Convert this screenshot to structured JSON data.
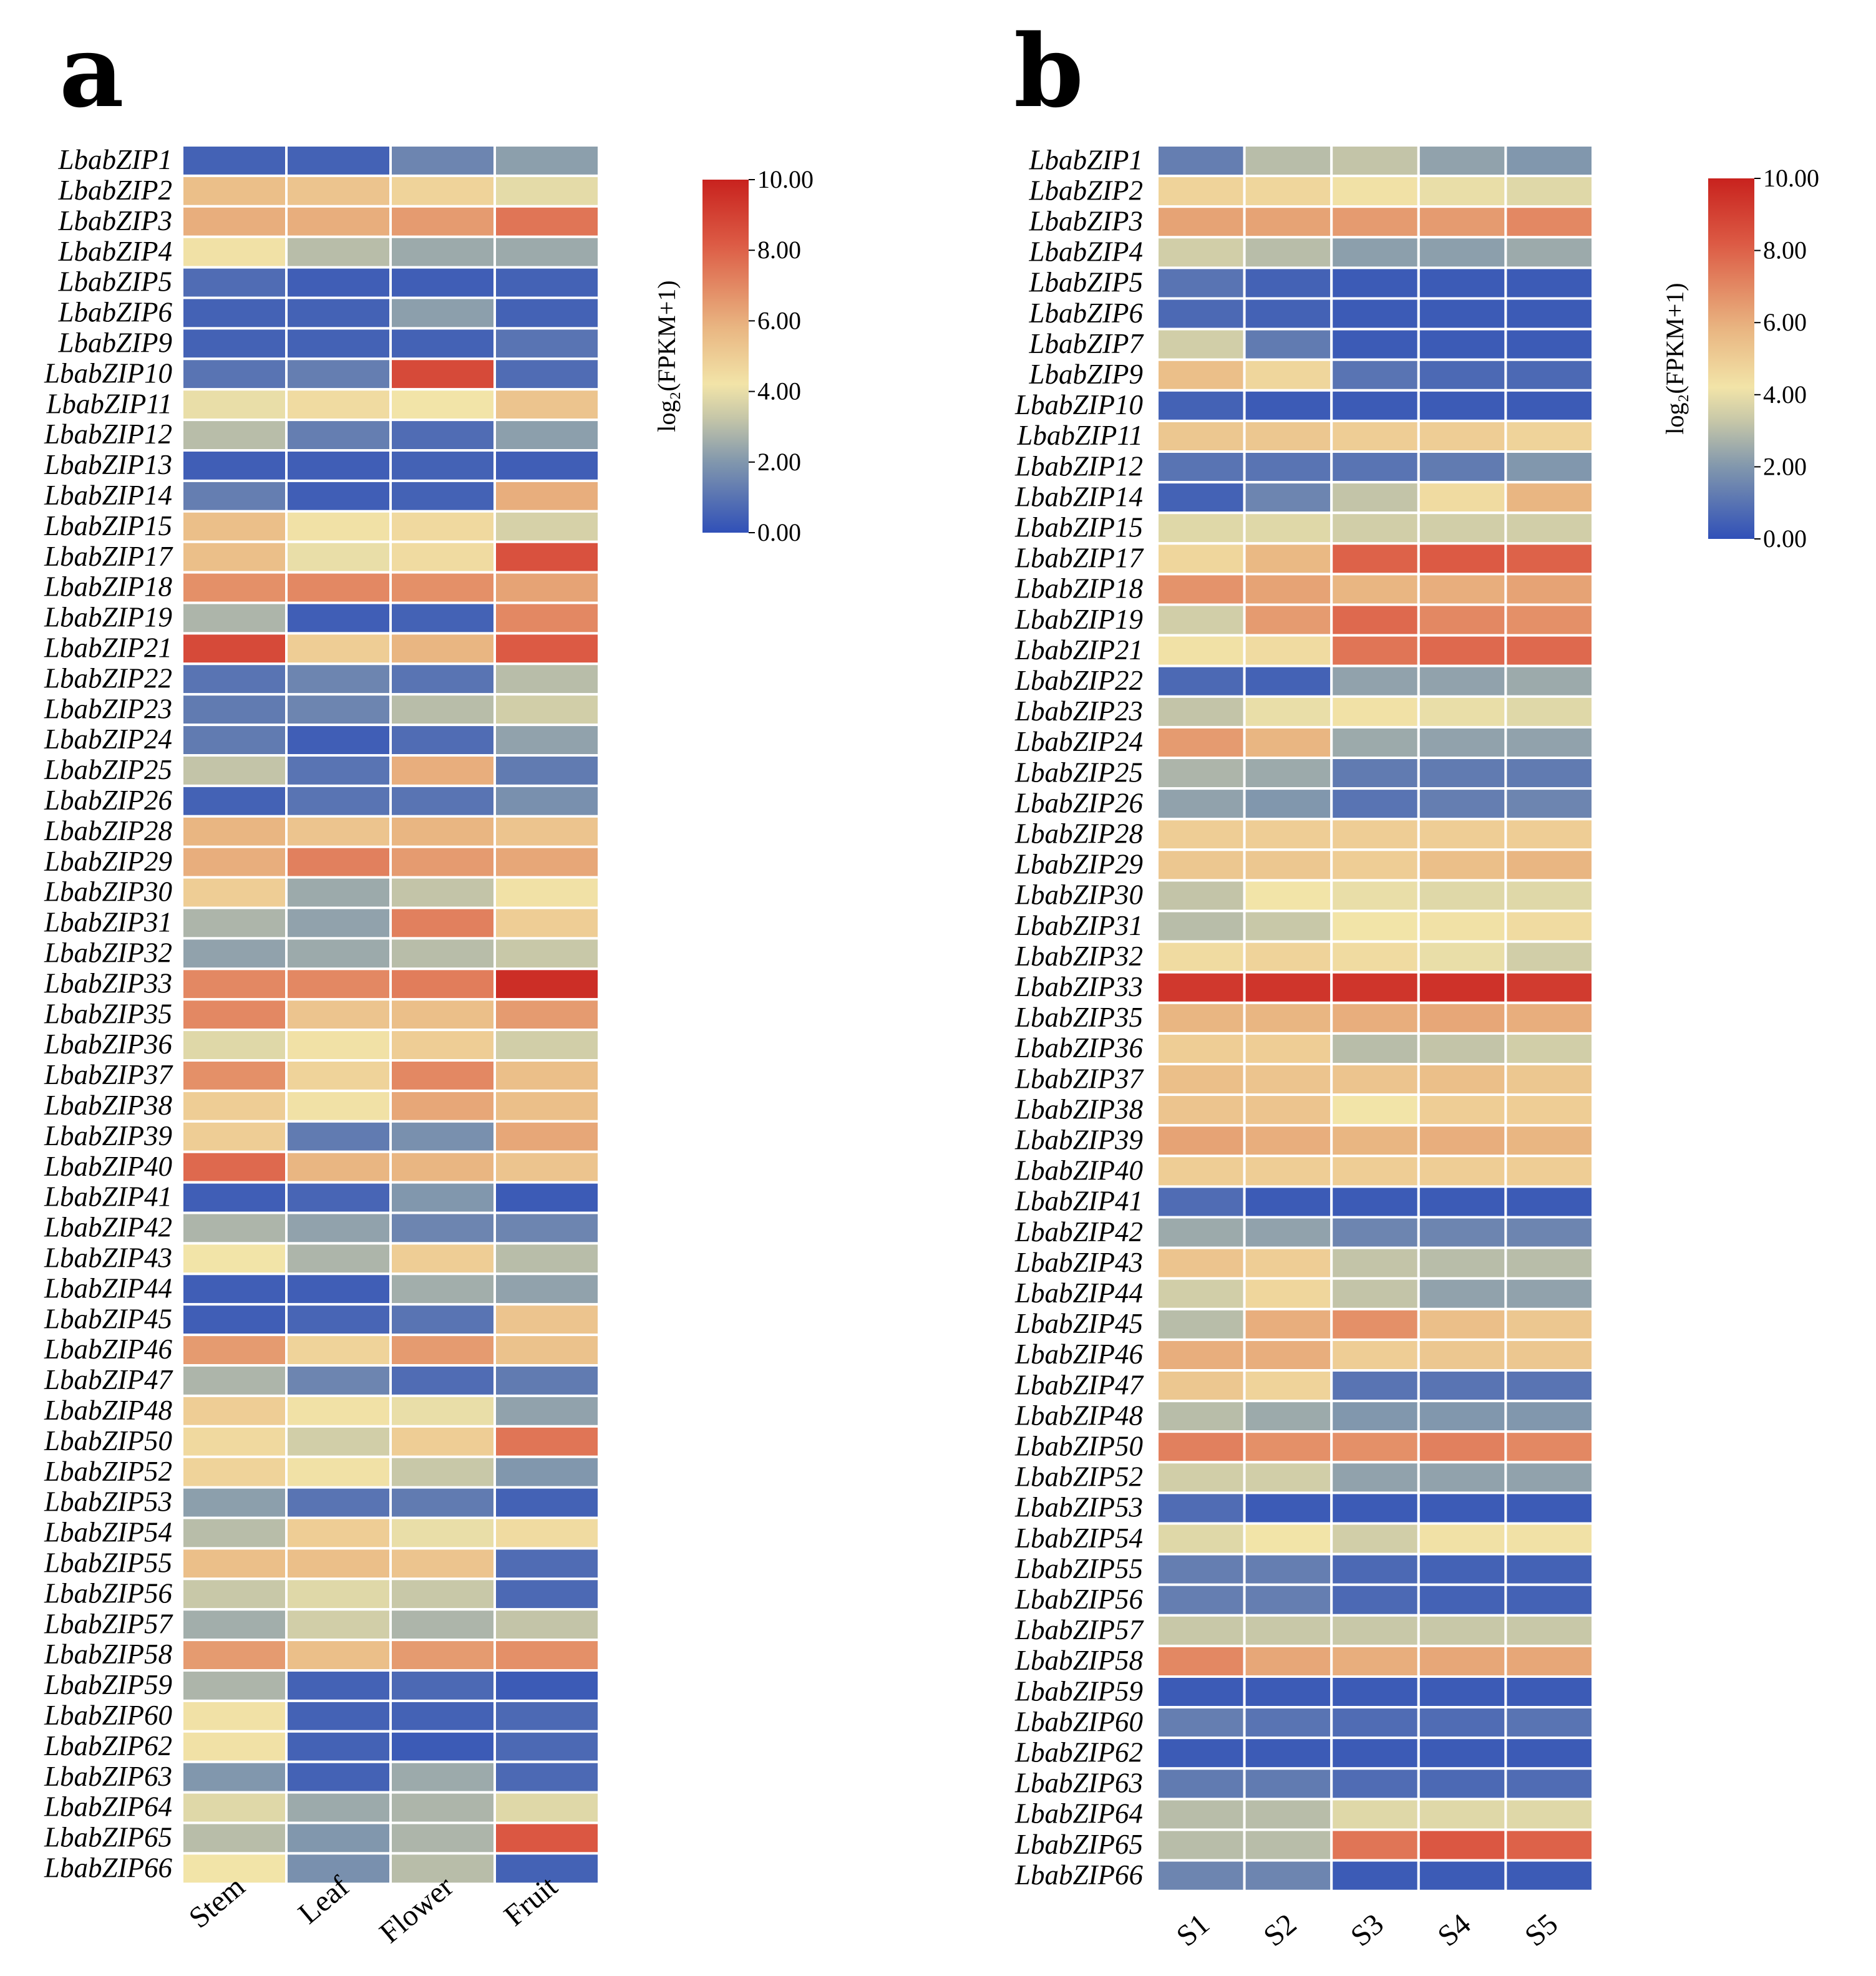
{
  "colors": {
    "stops": [
      "#3050b8",
      "#8197ad",
      "#c8c8a8",
      "#f2e4a8",
      "#e9b682",
      "#dc5a44",
      "#c8221e"
    ],
    "stop_values": [
      0,
      2,
      3.3,
      4.2,
      5.8,
      8.2,
      10
    ],
    "grid_line": "#ffffff"
  },
  "chart_data": [
    {
      "type": "heatmap",
      "panel_label": "a",
      "title": "",
      "columns": [
        "Stem",
        "Leaf",
        "Flower",
        "Fruit"
      ],
      "rows": [
        "LbabZIP1",
        "LbabZIP2",
        "LbabZIP3",
        "LbabZIP4",
        "LbabZIP5",
        "LbabZIP6",
        "LbabZIP9",
        "LbabZIP10",
        "LbabZIP11",
        "LbabZIP12",
        "LbabZIP13",
        "LbabZIP14",
        "LbabZIP15",
        "LbabZIP17",
        "LbabZIP18",
        "LbabZIP19",
        "LbabZIP21",
        "LbabZIP22",
        "LbabZIP23",
        "LbabZIP24",
        "LbabZIP25",
        "LbabZIP26",
        "LbabZIP28",
        "LbabZIP29",
        "LbabZIP30",
        "LbabZIP31",
        "LbabZIP32",
        "LbabZIP33",
        "LbabZIP35",
        "LbabZIP36",
        "LbabZIP37",
        "LbabZIP38",
        "LbabZIP39",
        "LbabZIP40",
        "LbabZIP41",
        "LbabZIP42",
        "LbabZIP43",
        "LbabZIP44",
        "LbabZIP45",
        "LbabZIP46",
        "LbabZIP47",
        "LbabZIP48",
        "LbabZIP50",
        "LbabZIP52",
        "LbabZIP53",
        "LbabZIP54",
        "LbabZIP55",
        "LbabZIP56",
        "LbabZIP57",
        "LbabZIP58",
        "LbabZIP59",
        "LbabZIP60",
        "LbabZIP62",
        "LbabZIP63",
        "LbabZIP64",
        "LbabZIP65",
        "LbabZIP66"
      ],
      "values": [
        [
          0.5,
          0.5,
          1.5,
          2.2
        ],
        [
          5.5,
          5.3,
          4.8,
          3.9
        ],
        [
          6.0,
          6.0,
          6.5,
          7.5
        ],
        [
          4.3,
          3.0,
          2.5,
          2.5
        ],
        [
          0.8,
          0.4,
          0.4,
          0.5
        ],
        [
          0.5,
          0.5,
          2.2,
          0.5
        ],
        [
          0.5,
          0.5,
          0.5,
          1.0
        ],
        [
          1.0,
          1.3,
          8.7,
          0.8
        ],
        [
          4.0,
          4.5,
          4.2,
          5.3
        ],
        [
          3.0,
          1.3,
          0.8,
          2.2
        ],
        [
          0.4,
          0.4,
          0.5,
          0.4
        ],
        [
          1.3,
          0.4,
          0.5,
          6.0
        ],
        [
          5.5,
          4.3,
          4.6,
          3.6
        ],
        [
          5.5,
          4.0,
          4.5,
          8.5
        ],
        [
          6.8,
          7.0,
          6.8,
          6.3
        ],
        [
          2.8,
          0.4,
          0.5,
          7.0
        ],
        [
          8.7,
          5.0,
          5.8,
          8.2
        ],
        [
          1.0,
          1.5,
          1.0,
          3.0
        ],
        [
          1.2,
          1.5,
          3.0,
          3.5
        ],
        [
          1.2,
          0.4,
          0.8,
          2.3
        ],
        [
          3.2,
          1.0,
          6.0,
          1.2
        ],
        [
          0.5,
          1.0,
          1.0,
          1.8
        ],
        [
          5.8,
          5.3,
          5.8,
          5.3
        ],
        [
          6.0,
          7.2,
          6.5,
          6.2
        ],
        [
          5.0,
          2.5,
          3.2,
          4.3
        ],
        [
          2.8,
          2.3,
          7.2,
          5.0
        ],
        [
          2.3,
          2.5,
          3.0,
          3.3
        ],
        [
          7.0,
          7.0,
          7.3,
          9.6
        ],
        [
          7.0,
          5.3,
          5.5,
          6.5
        ],
        [
          3.8,
          4.3,
          5.0,
          3.5
        ],
        [
          6.8,
          4.8,
          7.0,
          5.5
        ],
        [
          5.0,
          4.3,
          6.2,
          5.5
        ],
        [
          5.0,
          1.2,
          1.8,
          6.2
        ],
        [
          7.8,
          5.8,
          5.8,
          5.3
        ],
        [
          0.4,
          0.6,
          2.0,
          0.3
        ],
        [
          2.8,
          2.3,
          1.5,
          1.5
        ],
        [
          4.2,
          2.8,
          5.0,
          3.0
        ],
        [
          0.4,
          0.4,
          2.6,
          2.3
        ],
        [
          0.4,
          0.6,
          1.0,
          5.3
        ],
        [
          6.5,
          4.8,
          6.5,
          5.4
        ],
        [
          2.8,
          1.5,
          0.8,
          1.2
        ],
        [
          5.0,
          4.3,
          4.0,
          2.3
        ],
        [
          4.6,
          3.5,
          5.0,
          7.5
        ],
        [
          4.8,
          4.3,
          3.3,
          2.0
        ],
        [
          2.2,
          1.0,
          1.2,
          0.5
        ],
        [
          3.0,
          5.0,
          4.0,
          4.5
        ],
        [
          5.5,
          5.5,
          5.3,
          0.8
        ],
        [
          3.3,
          3.8,
          3.3,
          0.7
        ],
        [
          2.6,
          3.5,
          2.8,
          3.2
        ],
        [
          6.5,
          5.5,
          6.5,
          6.8
        ],
        [
          2.8,
          0.5,
          0.7,
          0.3
        ],
        [
          4.3,
          0.5,
          0.5,
          0.7
        ],
        [
          4.3,
          0.5,
          0.3,
          0.7
        ],
        [
          2.0,
          0.5,
          2.5,
          0.7
        ],
        [
          3.8,
          2.5,
          2.8,
          3.8
        ],
        [
          3.0,
          2.0,
          2.8,
          8.3
        ],
        [
          4.2,
          1.8,
          3.0,
          0.5
        ]
      ],
      "colorbar": {
        "label": "log₂(FPKM+1)",
        "range": [
          0,
          10
        ],
        "ticks": [
          "0.00",
          "2.00",
          "4.00",
          "6.00",
          "8.00",
          "10.00"
        ]
      }
    },
    {
      "type": "heatmap",
      "panel_label": "b",
      "title": "",
      "columns": [
        "S1",
        "S2",
        "S3",
        "S4",
        "S5"
      ],
      "rows": [
        "LbabZIP1",
        "LbabZIP2",
        "LbabZIP3",
        "LbabZIP4",
        "LbabZIP5",
        "LbabZIP6",
        "LbabZIP7",
        "LbabZIP9",
        "LbabZIP10",
        "LbabZIP11",
        "LbabZIP12",
        "LbabZIP14",
        "LbabZIP15",
        "LbabZIP17",
        "LbabZIP18",
        "LbabZIP19",
        "LbabZIP21",
        "LbabZIP22",
        "LbabZIP23",
        "LbabZIP24",
        "LbabZIP25",
        "LbabZIP26",
        "LbabZIP28",
        "LbabZIP29",
        "LbabZIP30",
        "LbabZIP31",
        "LbabZIP32",
        "LbabZIP33",
        "LbabZIP35",
        "LbabZIP36",
        "LbabZIP37",
        "LbabZIP38",
        "LbabZIP39",
        "LbabZIP40",
        "LbabZIP41",
        "LbabZIP42",
        "LbabZIP43",
        "LbabZIP44",
        "LbabZIP45",
        "LbabZIP46",
        "LbabZIP47",
        "LbabZIP48",
        "LbabZIP50",
        "LbabZIP52",
        "LbabZIP53",
        "LbabZIP54",
        "LbabZIP55",
        "LbabZIP56",
        "LbabZIP57",
        "LbabZIP58",
        "LbabZIP59",
        "LbabZIP60",
        "LbabZIP62",
        "LbabZIP63",
        "LbabZIP64",
        "LbabZIP65",
        "LbabZIP66"
      ],
      "values": [
        [
          1.3,
          3.0,
          3.2,
          2.3,
          2.0
        ],
        [
          4.8,
          4.7,
          4.3,
          4.0,
          3.8
        ],
        [
          6.3,
          6.3,
          6.5,
          6.5,
          7.0
        ],
        [
          3.5,
          3.0,
          2.2,
          2.2,
          2.5
        ],
        [
          1.0,
          0.5,
          0.3,
          0.3,
          0.3
        ],
        [
          0.7,
          0.5,
          0.3,
          0.3,
          0.3
        ],
        [
          3.5,
          1.2,
          0.3,
          0.3,
          0.3
        ],
        [
          5.5,
          4.7,
          1.0,
          0.7,
          0.7
        ],
        [
          0.5,
          0.3,
          0.3,
          0.3,
          0.3
        ],
        [
          5.2,
          5.2,
          5.0,
          5.0,
          4.8
        ],
        [
          1.0,
          1.0,
          1.0,
          1.2,
          2.0
        ],
        [
          0.5,
          1.5,
          3.2,
          4.5,
          5.8
        ],
        [
          3.8,
          3.8,
          3.5,
          3.5,
          3.5
        ],
        [
          4.7,
          5.7,
          8.0,
          8.2,
          8.0
        ],
        [
          6.7,
          6.3,
          5.8,
          6.0,
          6.3
        ],
        [
          3.5,
          6.5,
          7.8,
          7.0,
          6.8
        ],
        [
          4.3,
          4.5,
          7.5,
          7.8,
          7.8
        ],
        [
          0.7,
          0.5,
          2.3,
          2.3,
          2.5
        ],
        [
          3.2,
          4.0,
          4.3,
          4.0,
          3.8
        ],
        [
          6.5,
          5.8,
          2.5,
          2.3,
          2.3
        ],
        [
          2.8,
          2.5,
          1.2,
          1.2,
          1.2
        ],
        [
          2.3,
          2.0,
          1.0,
          1.3,
          1.5
        ],
        [
          5.0,
          5.0,
          5.0,
          5.0,
          5.0
        ],
        [
          5.2,
          5.2,
          5.0,
          5.5,
          5.8
        ],
        [
          3.2,
          4.2,
          4.0,
          3.8,
          3.8
        ],
        [
          3.0,
          3.3,
          4.2,
          4.3,
          4.5
        ],
        [
          4.5,
          4.8,
          4.5,
          4.0,
          3.5
        ],
        [
          9.3,
          9.4,
          9.4,
          9.5,
          9.2
        ],
        [
          5.8,
          5.8,
          6.0,
          6.2,
          6.0
        ],
        [
          5.0,
          5.0,
          3.0,
          3.2,
          3.5
        ],
        [
          5.5,
          5.3,
          5.3,
          5.5,
          5.2
        ],
        [
          5.3,
          5.3,
          4.2,
          5.0,
          5.0
        ],
        [
          6.3,
          6.0,
          5.8,
          6.0,
          5.8
        ],
        [
          5.0,
          5.0,
          5.0,
          5.0,
          5.0
        ],
        [
          0.8,
          0.3,
          0.3,
          0.3,
          0.3
        ],
        [
          2.5,
          2.3,
          1.5,
          1.5,
          1.5
        ],
        [
          5.3,
          5.0,
          3.2,
          3.0,
          3.0
        ],
        [
          3.5,
          4.7,
          3.2,
          2.3,
          2.3
        ],
        [
          3.0,
          6.0,
          6.8,
          5.5,
          5.2
        ],
        [
          6.0,
          6.0,
          5.0,
          5.2,
          5.2
        ],
        [
          5.2,
          4.8,
          1.0,
          1.0,
          1.0
        ],
        [
          3.0,
          2.5,
          2.0,
          2.0,
          2.0
        ],
        [
          7.2,
          6.8,
          6.8,
          7.2,
          7.0
        ],
        [
          3.5,
          3.5,
          2.3,
          2.3,
          2.3
        ],
        [
          0.8,
          0.3,
          0.3,
          0.3,
          0.3
        ],
        [
          3.8,
          4.2,
          3.5,
          4.3,
          4.3
        ],
        [
          1.3,
          1.3,
          0.7,
          0.5,
          0.5
        ],
        [
          1.3,
          1.3,
          0.7,
          0.5,
          0.5
        ],
        [
          3.3,
          3.3,
          3.3,
          3.3,
          3.3
        ],
        [
          7.0,
          6.2,
          6.0,
          6.2,
          6.2
        ],
        [
          0.3,
          0.3,
          0.3,
          0.3,
          0.3
        ],
        [
          1.3,
          1.0,
          0.8,
          0.8,
          1.0
        ],
        [
          0.3,
          0.3,
          0.3,
          0.3,
          0.3
        ],
        [
          1.2,
          1.2,
          0.8,
          0.7,
          0.8
        ],
        [
          3.0,
          3.0,
          3.8,
          3.8,
          3.8
        ],
        [
          3.0,
          3.0,
          7.5,
          8.3,
          8.0
        ],
        [
          1.5,
          1.5,
          0.3,
          0.3,
          0.3
        ]
      ],
      "colorbar": {
        "label": "log₂(FPKM+1)",
        "range": [
          0,
          10
        ],
        "ticks": [
          "0.00",
          "2.00",
          "4.00",
          "6.00",
          "8.00",
          "10.00"
        ]
      }
    }
  ]
}
